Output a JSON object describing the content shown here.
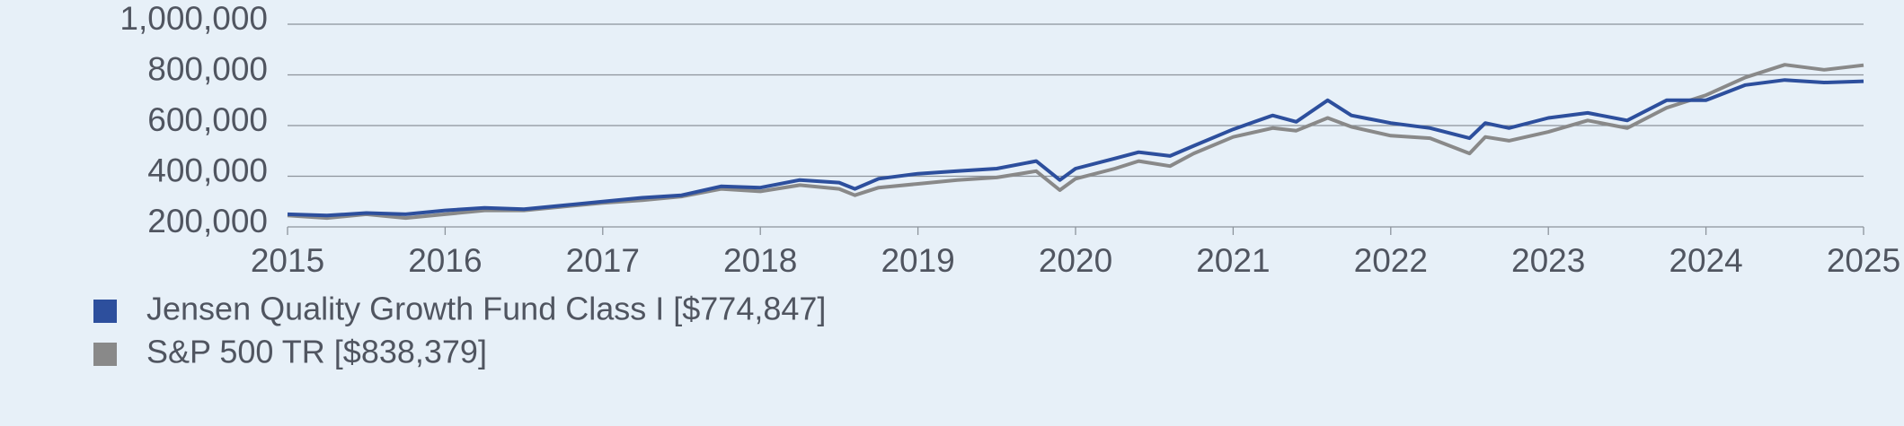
{
  "chart_data": {
    "type": "line",
    "x": [
      2015,
      2015.25,
      2015.5,
      2015.75,
      2016,
      2016.25,
      2016.5,
      2016.75,
      2017,
      2017.25,
      2017.5,
      2017.75,
      2018,
      2018.25,
      2018.5,
      2018.6,
      2018.75,
      2019,
      2019.25,
      2019.5,
      2019.75,
      2019.9,
      2020,
      2020.25,
      2020.4,
      2020.6,
      2020.75,
      2021,
      2021.25,
      2021.4,
      2021.6,
      2021.75,
      2022,
      2022.25,
      2022.5,
      2022.6,
      2022.75,
      2023,
      2023.25,
      2023.5,
      2023.75,
      2024,
      2024.25,
      2024.5,
      2024.75,
      2025
    ],
    "series": [
      {
        "name": "Jensen Quality Growth Fund Class I [$774,847]",
        "color": "#2d4f9d",
        "values": [
          250000,
          245000,
          255000,
          250000,
          265000,
          275000,
          270000,
          285000,
          300000,
          315000,
          325000,
          360000,
          355000,
          385000,
          375000,
          350000,
          390000,
          410000,
          420000,
          430000,
          460000,
          385000,
          430000,
          470000,
          495000,
          480000,
          520000,
          585000,
          640000,
          615000,
          700000,
          640000,
          610000,
          590000,
          550000,
          610000,
          590000,
          630000,
          650000,
          620000,
          700000,
          700000,
          760000,
          780000,
          770000,
          774847
        ]
      },
      {
        "name": "S&P 500 TR [$838,379]",
        "color": "#898989",
        "values": [
          245000,
          235000,
          250000,
          235000,
          250000,
          265000,
          265000,
          280000,
          295000,
          305000,
          320000,
          350000,
          340000,
          365000,
          350000,
          325000,
          355000,
          370000,
          385000,
          395000,
          420000,
          345000,
          390000,
          430000,
          460000,
          440000,
          490000,
          555000,
          590000,
          580000,
          630000,
          595000,
          560000,
          550000,
          490000,
          555000,
          540000,
          575000,
          620000,
          590000,
          670000,
          720000,
          790000,
          840000,
          820000,
          838379
        ]
      }
    ],
    "xlim": [
      2015,
      2025
    ],
    "xticks": [
      2015,
      2016,
      2017,
      2018,
      2019,
      2020,
      2021,
      2022,
      2023,
      2024,
      2025
    ],
    "ylim": [
      200000,
      1000000
    ],
    "yticks": [
      {
        "value": 200000,
        "label": "200,000"
      },
      {
        "value": 400000,
        "label": "400,000"
      },
      {
        "value": 600000,
        "label": "600,000"
      },
      {
        "value": 800000,
        "label": "800,000"
      },
      {
        "value": 1000000,
        "label": "1,000,000"
      }
    ],
    "grid": true
  }
}
